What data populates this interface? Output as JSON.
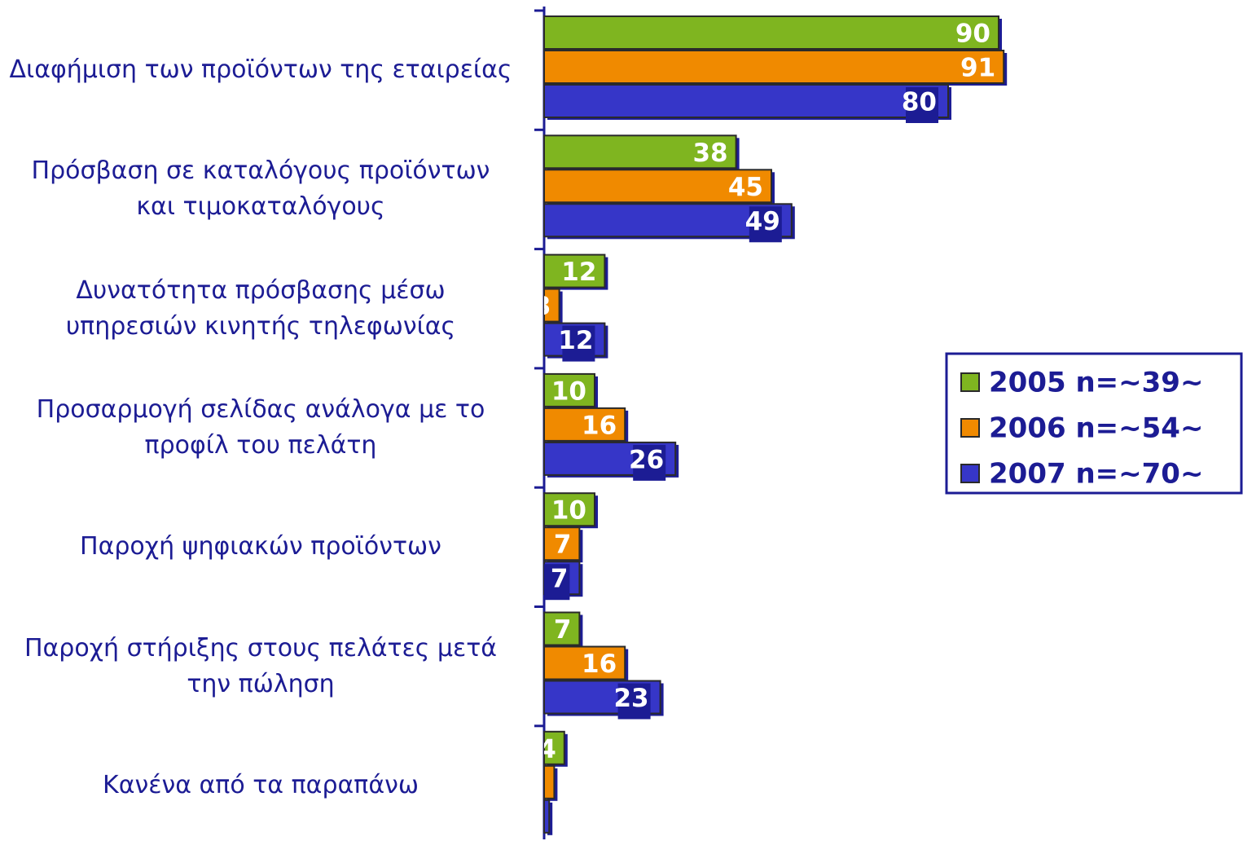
{
  "chart_data": {
    "type": "hbar",
    "categories": [
      "Διαφήμιση των προϊόντων της εταιρείας",
      "Πρόσβαση σε καταλόγους προϊόντων\nκαι τιμοκαταλόγους",
      "Δυνατότητα πρόσβασης μέσω\nυπηρεσιών κινητής τηλεφωνίας",
      "Προσαρμογή σελίδας ανάλογα με το\nπροφίλ του πελάτη",
      "Παροχή ψηφιακών προϊόντων",
      "Παροχή στήριξης στους πελάτες μετά\nτην πώληση",
      "Κανένα από τα παραπάνω"
    ],
    "series": [
      {
        "name": "2005 n=~39~",
        "color": "#7fb520",
        "values": [
          90,
          38,
          12,
          10,
          10,
          7,
          4
        ]
      },
      {
        "name": "2006 n=~54~",
        "color": "#f08a00",
        "values": [
          91,
          45,
          3,
          16,
          7,
          16,
          2
        ]
      },
      {
        "name": "2007 n=~70~",
        "color": "#3636c8",
        "values": [
          80,
          49,
          12,
          26,
          7,
          23,
          1
        ]
      }
    ],
    "xlim": [
      0,
      100
    ]
  }
}
